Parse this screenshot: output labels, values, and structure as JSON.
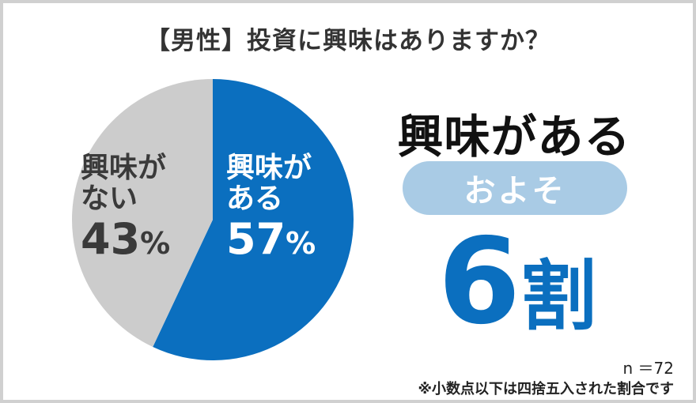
{
  "chart_data": {
    "type": "pie",
    "title": "【男性】投資に興味はありますか？",
    "slices": [
      {
        "name": "興味がある",
        "label_lines": [
          "興味が",
          "ある"
        ],
        "value": 57,
        "pct_text": "57",
        "color": "#0b6fbf"
      },
      {
        "name": "興味がない",
        "label_lines": [
          "興味が",
          "ない"
        ],
        "value": 43,
        "pct_text": "43",
        "color": "#cccccc"
      }
    ],
    "percent_sign": "%",
    "start": "top",
    "direction": "clockwise",
    "legend": "none"
  },
  "summary": {
    "headline": "興味がある",
    "approx": "およそ",
    "value": "6",
    "unit": "割"
  },
  "sample_size": "n ＝72",
  "footnote": "※小数点以下は四捨五入された割合です"
}
